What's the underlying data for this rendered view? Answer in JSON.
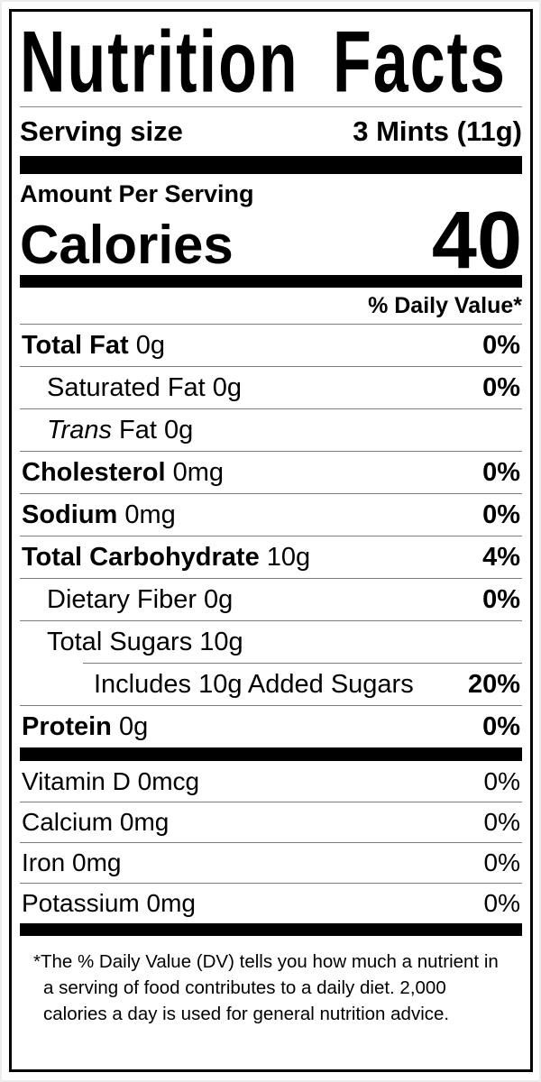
{
  "colors": {
    "text": "#000000",
    "background": "#ffffff",
    "bar": "#000000",
    "hairline": "#7d7d7d"
  },
  "label": {
    "title": "Nutrition Facts",
    "serving_size": {
      "label": "Serving size",
      "value": "3 Mints (11g)"
    },
    "amount_per_serving": "Amount Per Serving",
    "calories": {
      "label": "Calories",
      "value": "40"
    },
    "daily_value_header": "% Daily Value*",
    "nutrients": [
      {
        "bold": "Total Fat",
        "rest": " 0g",
        "dv": "0%"
      },
      {
        "rest": "Saturated Fat 0g",
        "dv": "0%"
      },
      {
        "italic": "Trans",
        "rest": " Fat 0g",
        "dv": ""
      },
      {
        "bold": "Cholesterol",
        "rest": " 0mg",
        "dv": "0%"
      },
      {
        "bold": "Sodium",
        "rest": " 0mg",
        "dv": "0%"
      },
      {
        "bold": "Total Carbohydrate",
        "rest": " 10g",
        "dv": "4%"
      },
      {
        "rest": "Dietary Fiber 0g",
        "dv": "0%"
      },
      {
        "rest": "Total Sugars 10g",
        "dv": ""
      },
      {
        "rest": "Includes 10g Added Sugars",
        "dv": "20%"
      },
      {
        "bold": "Protein",
        "rest": " 0g",
        "dv": "0%"
      }
    ],
    "vitamins": [
      {
        "name": "Vitamin D 0mcg",
        "dv": "0%"
      },
      {
        "name": "Calcium 0mg",
        "dv": "0%"
      },
      {
        "name": "Iron 0mg",
        "dv": "0%"
      },
      {
        "name": "Potassium 0mg",
        "dv": "0%"
      }
    ],
    "footnote": {
      "marker": "*",
      "text": "The % Daily Value (DV) tells you how much a nutrient in a serving of food contributes to a daily diet. 2,000 calories a day is used for general nutrition advice."
    }
  }
}
